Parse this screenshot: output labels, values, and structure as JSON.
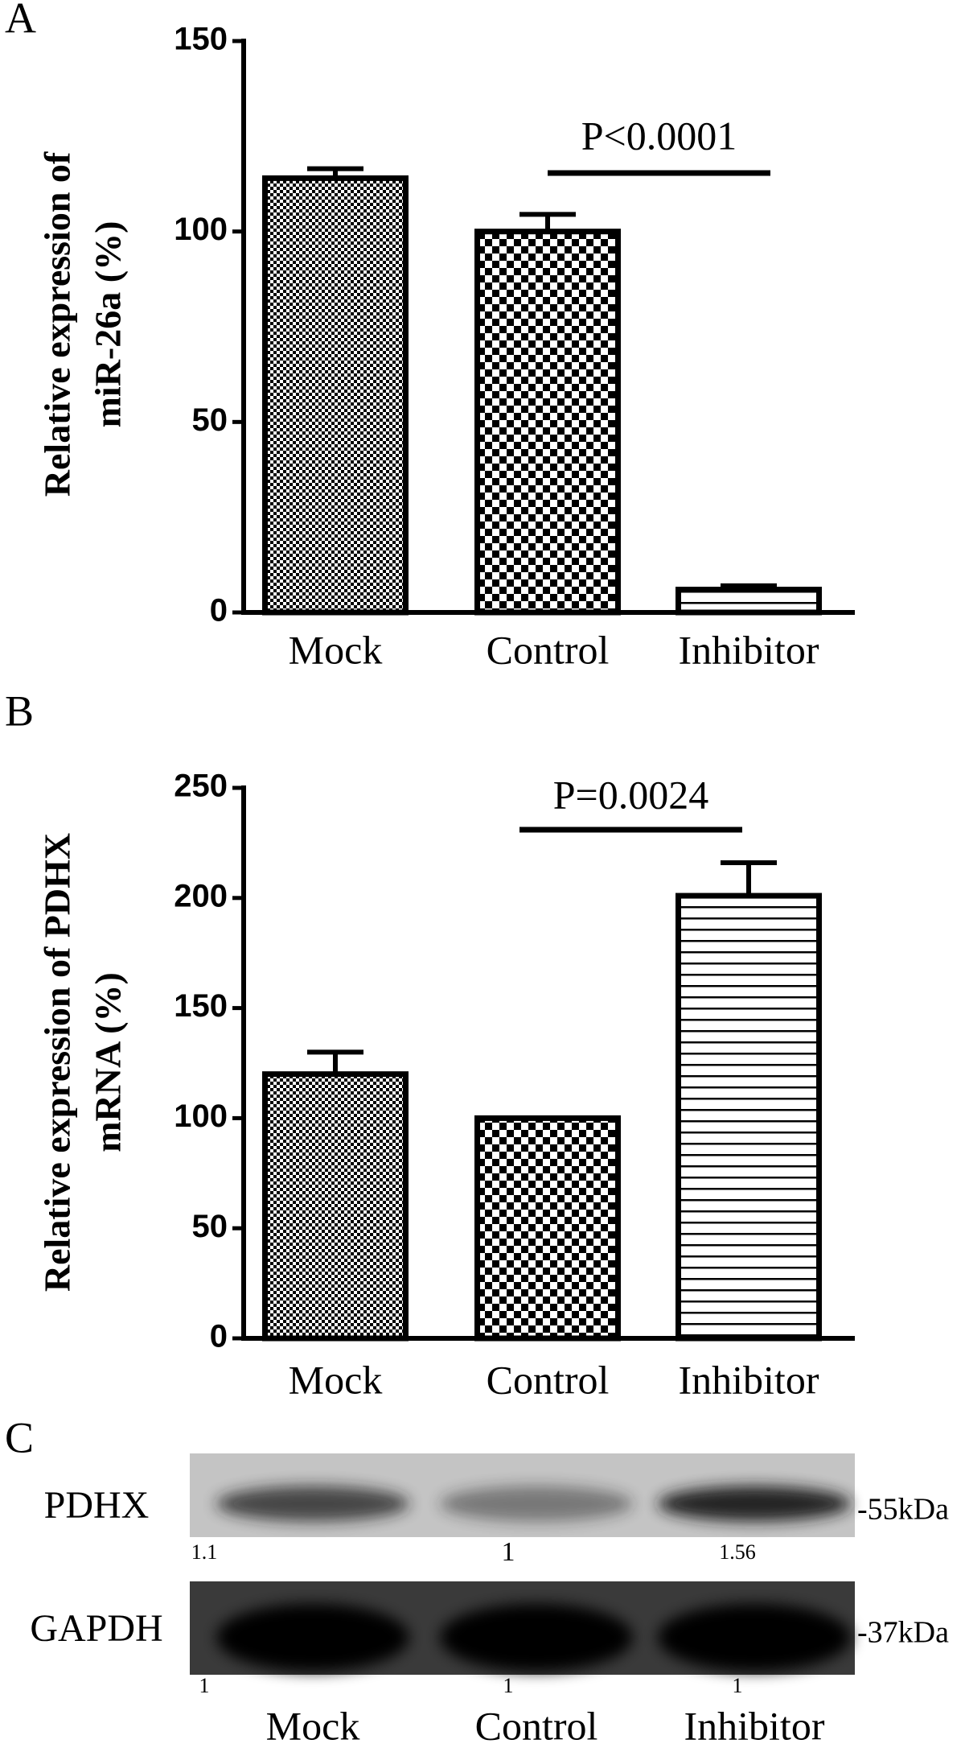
{
  "chart_data": [
    {
      "type": "bar",
      "panel_label": "A",
      "ylabel": [
        "Relative expression of",
        "miR-26a (%)"
      ],
      "categories": [
        "Mock",
        "Control",
        "Inhibitor"
      ],
      "values": [
        114,
        100,
        6
      ],
      "errors": [
        2.5,
        4.5,
        1
      ],
      "ylim": [
        0,
        150
      ],
      "yticks": [
        0,
        50,
        100,
        150
      ],
      "annotation": {
        "text": "P<0.0001",
        "from": "Control",
        "to": "Inhibitor"
      }
    },
    {
      "type": "bar",
      "panel_label": "B",
      "ylabel": [
        "Relative expression of PDHX",
        "mRNA (%)"
      ],
      "categories": [
        "Mock",
        "Control",
        "Inhibitor"
      ],
      "values": [
        120,
        100,
        201
      ],
      "errors": [
        10,
        0,
        15
      ],
      "ylim": [
        0,
        250
      ],
      "yticks": [
        0,
        50,
        100,
        150,
        200,
        250
      ],
      "annotation": {
        "text": "P=0.0024",
        "from": "Control",
        "to": "Inhibitor"
      }
    }
  ],
  "blot": {
    "panel_label": "C",
    "rows": [
      {
        "label": "PDHX",
        "size": "-55kDa",
        "quant": [
          1.1,
          1,
          1.56
        ]
      },
      {
        "label": "GAPDH",
        "size": "-37kDa",
        "quant": [
          1,
          1,
          1
        ]
      }
    ],
    "lanes": [
      "Mock",
      "Control",
      "Inhibitor"
    ]
  }
}
